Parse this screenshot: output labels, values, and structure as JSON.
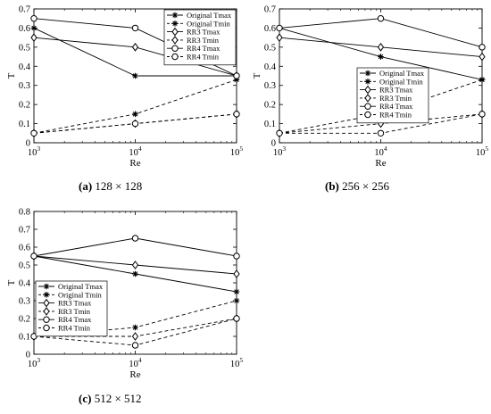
{
  "chart_data": [
    {
      "type": "line",
      "id": "a",
      "caption_letter": "(a)",
      "caption_text": "128 × 128",
      "xlabel": "Re",
      "ylabel": "T",
      "xscale": "log",
      "x": [
        1000,
        10000,
        100000
      ],
      "xtick_labels": [
        {
          "base": "10",
          "exp": "3"
        },
        {
          "base": "10",
          "exp": "4"
        },
        {
          "base": "10",
          "exp": "5"
        }
      ],
      "ylim": [
        0,
        0.7
      ],
      "yticks": [
        "0",
        "0.1",
        "0.2",
        "0.3",
        "0.4",
        "0.5",
        "0.6",
        "0.7"
      ],
      "grid": false,
      "legend_position": "top-right",
      "series": [
        {
          "name": "Original Tmax",
          "values": [
            0.6,
            0.35,
            0.35
          ],
          "line": "solid",
          "marker": "star"
        },
        {
          "name": "Original Tmin",
          "values": [
            0.05,
            0.15,
            0.33
          ],
          "line": "dashed",
          "marker": "star"
        },
        {
          "name": "RR3 Tmax",
          "values": [
            0.55,
            0.5,
            0.35
          ],
          "line": "solid",
          "marker": "diamond"
        },
        {
          "name": "RR3 Tmin",
          "values": [
            0.05,
            0.1,
            0.15
          ],
          "line": "dashed",
          "marker": "diamond"
        },
        {
          "name": "RR4 Tmax",
          "values": [
            0.65,
            0.6,
            0.35
          ],
          "line": "solid",
          "marker": "circle"
        },
        {
          "name": "RR4 Tmin",
          "values": [
            0.05,
            0.1,
            0.15
          ],
          "line": "dashed",
          "marker": "circle"
        }
      ]
    },
    {
      "type": "line",
      "id": "b",
      "caption_letter": "(b)",
      "caption_text": "256 × 256",
      "xlabel": "Re",
      "ylabel": "T",
      "xscale": "log",
      "x": [
        1000,
        10000,
        100000
      ],
      "xtick_labels": [
        {
          "base": "10",
          "exp": "3"
        },
        {
          "base": "10",
          "exp": "4"
        },
        {
          "base": "10",
          "exp": "5"
        }
      ],
      "ylim": [
        0,
        0.7
      ],
      "yticks": [
        "0",
        "0.1",
        "0.2",
        "0.3",
        "0.4",
        "0.5",
        "0.6",
        "0.7"
      ],
      "grid": false,
      "legend_position": "center-right",
      "series": [
        {
          "name": "Original Tmax",
          "values": [
            0.6,
            0.45,
            0.33
          ],
          "line": "solid",
          "marker": "star"
        },
        {
          "name": "Original Tmin",
          "values": [
            0.05,
            0.15,
            0.33
          ],
          "line": "dashed",
          "marker": "star"
        },
        {
          "name": "RR3 Tmax",
          "values": [
            0.55,
            0.5,
            0.45
          ],
          "line": "solid",
          "marker": "diamond"
        },
        {
          "name": "RR3 Tmin",
          "values": [
            0.05,
            0.1,
            0.15
          ],
          "line": "dashed",
          "marker": "diamond"
        },
        {
          "name": "RR4 Tmax",
          "values": [
            0.6,
            0.65,
            0.5
          ],
          "line": "solid",
          "marker": "circle"
        },
        {
          "name": "RR4 Tmin",
          "values": [
            0.05,
            0.05,
            0.15
          ],
          "line": "dashed",
          "marker": "circle"
        }
      ]
    },
    {
      "type": "line",
      "id": "c",
      "caption_letter": "(c)",
      "caption_text": "512 × 512",
      "xlabel": "Re",
      "ylabel": "T",
      "xscale": "log",
      "x": [
        1000,
        10000,
        100000
      ],
      "xtick_labels": [
        {
          "base": "10",
          "exp": "3"
        },
        {
          "base": "10",
          "exp": "4"
        },
        {
          "base": "10",
          "exp": "5"
        }
      ],
      "ylim": [
        0,
        0.8
      ],
      "yticks": [
        "0",
        "0.1",
        "0.2",
        "0.3",
        "0.4",
        "0.5",
        "0.6",
        "0.7",
        "0.8"
      ],
      "grid": false,
      "legend_position": "center-left",
      "series": [
        {
          "name": "Original Tmax",
          "values": [
            0.55,
            0.45,
            0.35
          ],
          "line": "solid",
          "marker": "star"
        },
        {
          "name": "Original Tmin",
          "values": [
            0.1,
            0.15,
            0.3
          ],
          "line": "dashed",
          "marker": "star"
        },
        {
          "name": "RR3 Tmax",
          "values": [
            0.55,
            0.5,
            0.45
          ],
          "line": "solid",
          "marker": "diamond"
        },
        {
          "name": "RR3 Tmin",
          "values": [
            0.1,
            0.1,
            0.2
          ],
          "line": "dashed",
          "marker": "diamond"
        },
        {
          "name": "RR4 Tmax",
          "values": [
            0.55,
            0.65,
            0.55
          ],
          "line": "solid",
          "marker": "circle"
        },
        {
          "name": "RR4 Tmin",
          "values": [
            0.1,
            0.05,
            0.2
          ],
          "line": "dashed",
          "marker": "circle"
        }
      ]
    }
  ]
}
